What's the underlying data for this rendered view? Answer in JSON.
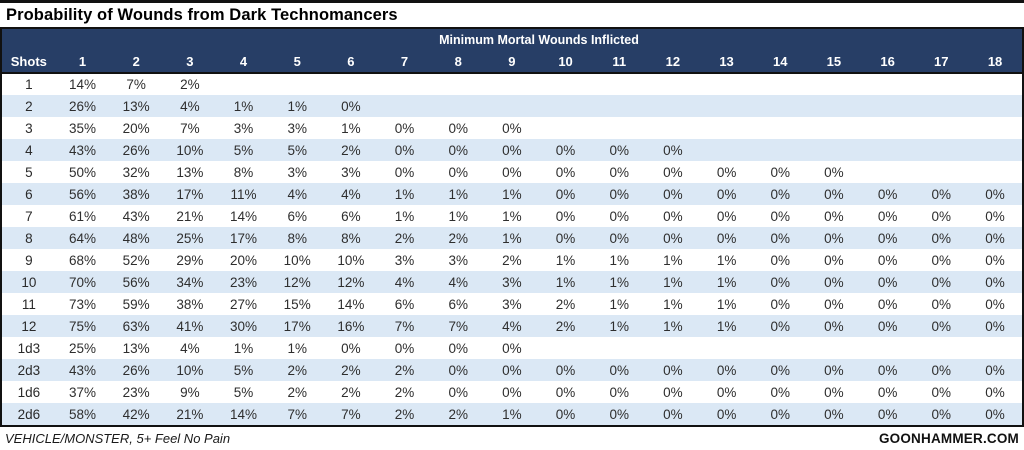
{
  "colors": {
    "header_navy": "#273e66",
    "band_blue": "#dbe8f5",
    "border_black": "#111111",
    "header_text": "#ffffff",
    "cell_text": "#2e2e2e"
  },
  "chart_data": {
    "type": "table",
    "title": "Probability of Wounds from Dark Technomancers",
    "group_header": "Minimum Mortal Wounds Inflicted",
    "row_header": "Shots",
    "columns": [
      "1",
      "2",
      "3",
      "4",
      "5",
      "6",
      "7",
      "8",
      "9",
      "10",
      "11",
      "12",
      "13",
      "14",
      "15",
      "16",
      "17",
      "18"
    ],
    "rows": [
      {
        "label": "1",
        "values": [
          "14%",
          "7%",
          "2%",
          "",
          "",
          "",
          "",
          "",
          "",
          "",
          "",
          "",
          "",
          "",
          "",
          "",
          "",
          ""
        ]
      },
      {
        "label": "2",
        "values": [
          "26%",
          "13%",
          "4%",
          "1%",
          "1%",
          "0%",
          "",
          "",
          "",
          "",
          "",
          "",
          "",
          "",
          "",
          "",
          "",
          ""
        ]
      },
      {
        "label": "3",
        "values": [
          "35%",
          "20%",
          "7%",
          "3%",
          "3%",
          "1%",
          "0%",
          "0%",
          "0%",
          "",
          "",
          "",
          "",
          "",
          "",
          "",
          "",
          ""
        ]
      },
      {
        "label": "4",
        "values": [
          "43%",
          "26%",
          "10%",
          "5%",
          "5%",
          "2%",
          "0%",
          "0%",
          "0%",
          "0%",
          "0%",
          "0%",
          "",
          "",
          "",
          "",
          "",
          ""
        ]
      },
      {
        "label": "5",
        "values": [
          "50%",
          "32%",
          "13%",
          "8%",
          "3%",
          "3%",
          "0%",
          "0%",
          "0%",
          "0%",
          "0%",
          "0%",
          "0%",
          "0%",
          "0%",
          "",
          "",
          ""
        ]
      },
      {
        "label": "6",
        "values": [
          "56%",
          "38%",
          "17%",
          "11%",
          "4%",
          "4%",
          "1%",
          "1%",
          "1%",
          "0%",
          "0%",
          "0%",
          "0%",
          "0%",
          "0%",
          "0%",
          "0%",
          "0%"
        ]
      },
      {
        "label": "7",
        "values": [
          "61%",
          "43%",
          "21%",
          "14%",
          "6%",
          "6%",
          "1%",
          "1%",
          "1%",
          "0%",
          "0%",
          "0%",
          "0%",
          "0%",
          "0%",
          "0%",
          "0%",
          "0%"
        ]
      },
      {
        "label": "8",
        "values": [
          "64%",
          "48%",
          "25%",
          "17%",
          "8%",
          "8%",
          "2%",
          "2%",
          "1%",
          "0%",
          "0%",
          "0%",
          "0%",
          "0%",
          "0%",
          "0%",
          "0%",
          "0%"
        ]
      },
      {
        "label": "9",
        "values": [
          "68%",
          "52%",
          "29%",
          "20%",
          "10%",
          "10%",
          "3%",
          "3%",
          "2%",
          "1%",
          "1%",
          "1%",
          "1%",
          "0%",
          "0%",
          "0%",
          "0%",
          "0%"
        ]
      },
      {
        "label": "10",
        "values": [
          "70%",
          "56%",
          "34%",
          "23%",
          "12%",
          "12%",
          "4%",
          "4%",
          "3%",
          "1%",
          "1%",
          "1%",
          "1%",
          "0%",
          "0%",
          "0%",
          "0%",
          "0%"
        ]
      },
      {
        "label": "11",
        "values": [
          "73%",
          "59%",
          "38%",
          "27%",
          "15%",
          "14%",
          "6%",
          "6%",
          "3%",
          "2%",
          "1%",
          "1%",
          "1%",
          "0%",
          "0%",
          "0%",
          "0%",
          "0%"
        ]
      },
      {
        "label": "12",
        "values": [
          "75%",
          "63%",
          "41%",
          "30%",
          "17%",
          "16%",
          "7%",
          "7%",
          "4%",
          "2%",
          "1%",
          "1%",
          "1%",
          "0%",
          "0%",
          "0%",
          "0%",
          "0%"
        ]
      },
      {
        "label": "1d3",
        "values": [
          "25%",
          "13%",
          "4%",
          "1%",
          "1%",
          "0%",
          "0%",
          "0%",
          "0%",
          "",
          "",
          "",
          "",
          "",
          "",
          "",
          "",
          ""
        ]
      },
      {
        "label": "2d3",
        "values": [
          "43%",
          "26%",
          "10%",
          "5%",
          "2%",
          "2%",
          "2%",
          "0%",
          "0%",
          "0%",
          "0%",
          "0%",
          "0%",
          "0%",
          "0%",
          "0%",
          "0%",
          "0%"
        ]
      },
      {
        "label": "1d6",
        "values": [
          "37%",
          "23%",
          "9%",
          "5%",
          "2%",
          "2%",
          "2%",
          "0%",
          "0%",
          "0%",
          "0%",
          "0%",
          "0%",
          "0%",
          "0%",
          "0%",
          "0%",
          "0%"
        ]
      },
      {
        "label": "2d6",
        "values": [
          "58%",
          "42%",
          "21%",
          "14%",
          "7%",
          "7%",
          "2%",
          "2%",
          "1%",
          "0%",
          "0%",
          "0%",
          "0%",
          "0%",
          "0%",
          "0%",
          "0%",
          "0%"
        ]
      }
    ],
    "footer_left": "VEHICLE/MONSTER, 5+ Feel No Pain",
    "footer_right": "GOONHAMMER.COM"
  }
}
